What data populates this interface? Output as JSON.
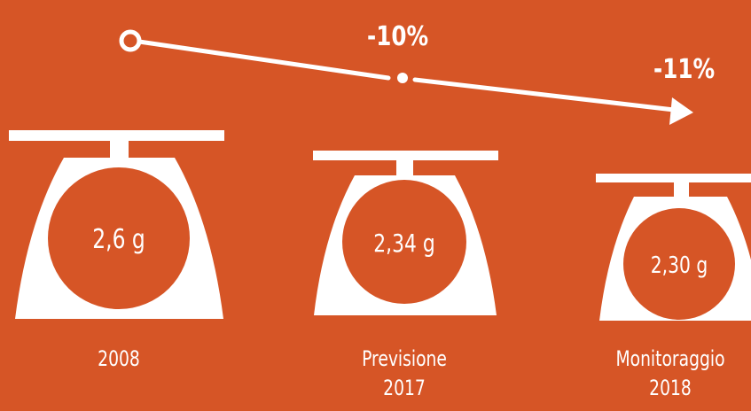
{
  "trend": {
    "change_1": "-10%",
    "change_2": "-11%"
  },
  "scales": [
    {
      "value": "2,6 g",
      "label_line1": "2008",
      "label_line2": ""
    },
    {
      "value": "2,34 g",
      "label_line1": "Previsione",
      "label_line2": "2017"
    },
    {
      "value": "2,30 g",
      "label_line1": "Monitoraggio",
      "label_line2": "2018"
    }
  ],
  "colors": {
    "background": "#D65526",
    "foreground": "#FFFFFF"
  }
}
